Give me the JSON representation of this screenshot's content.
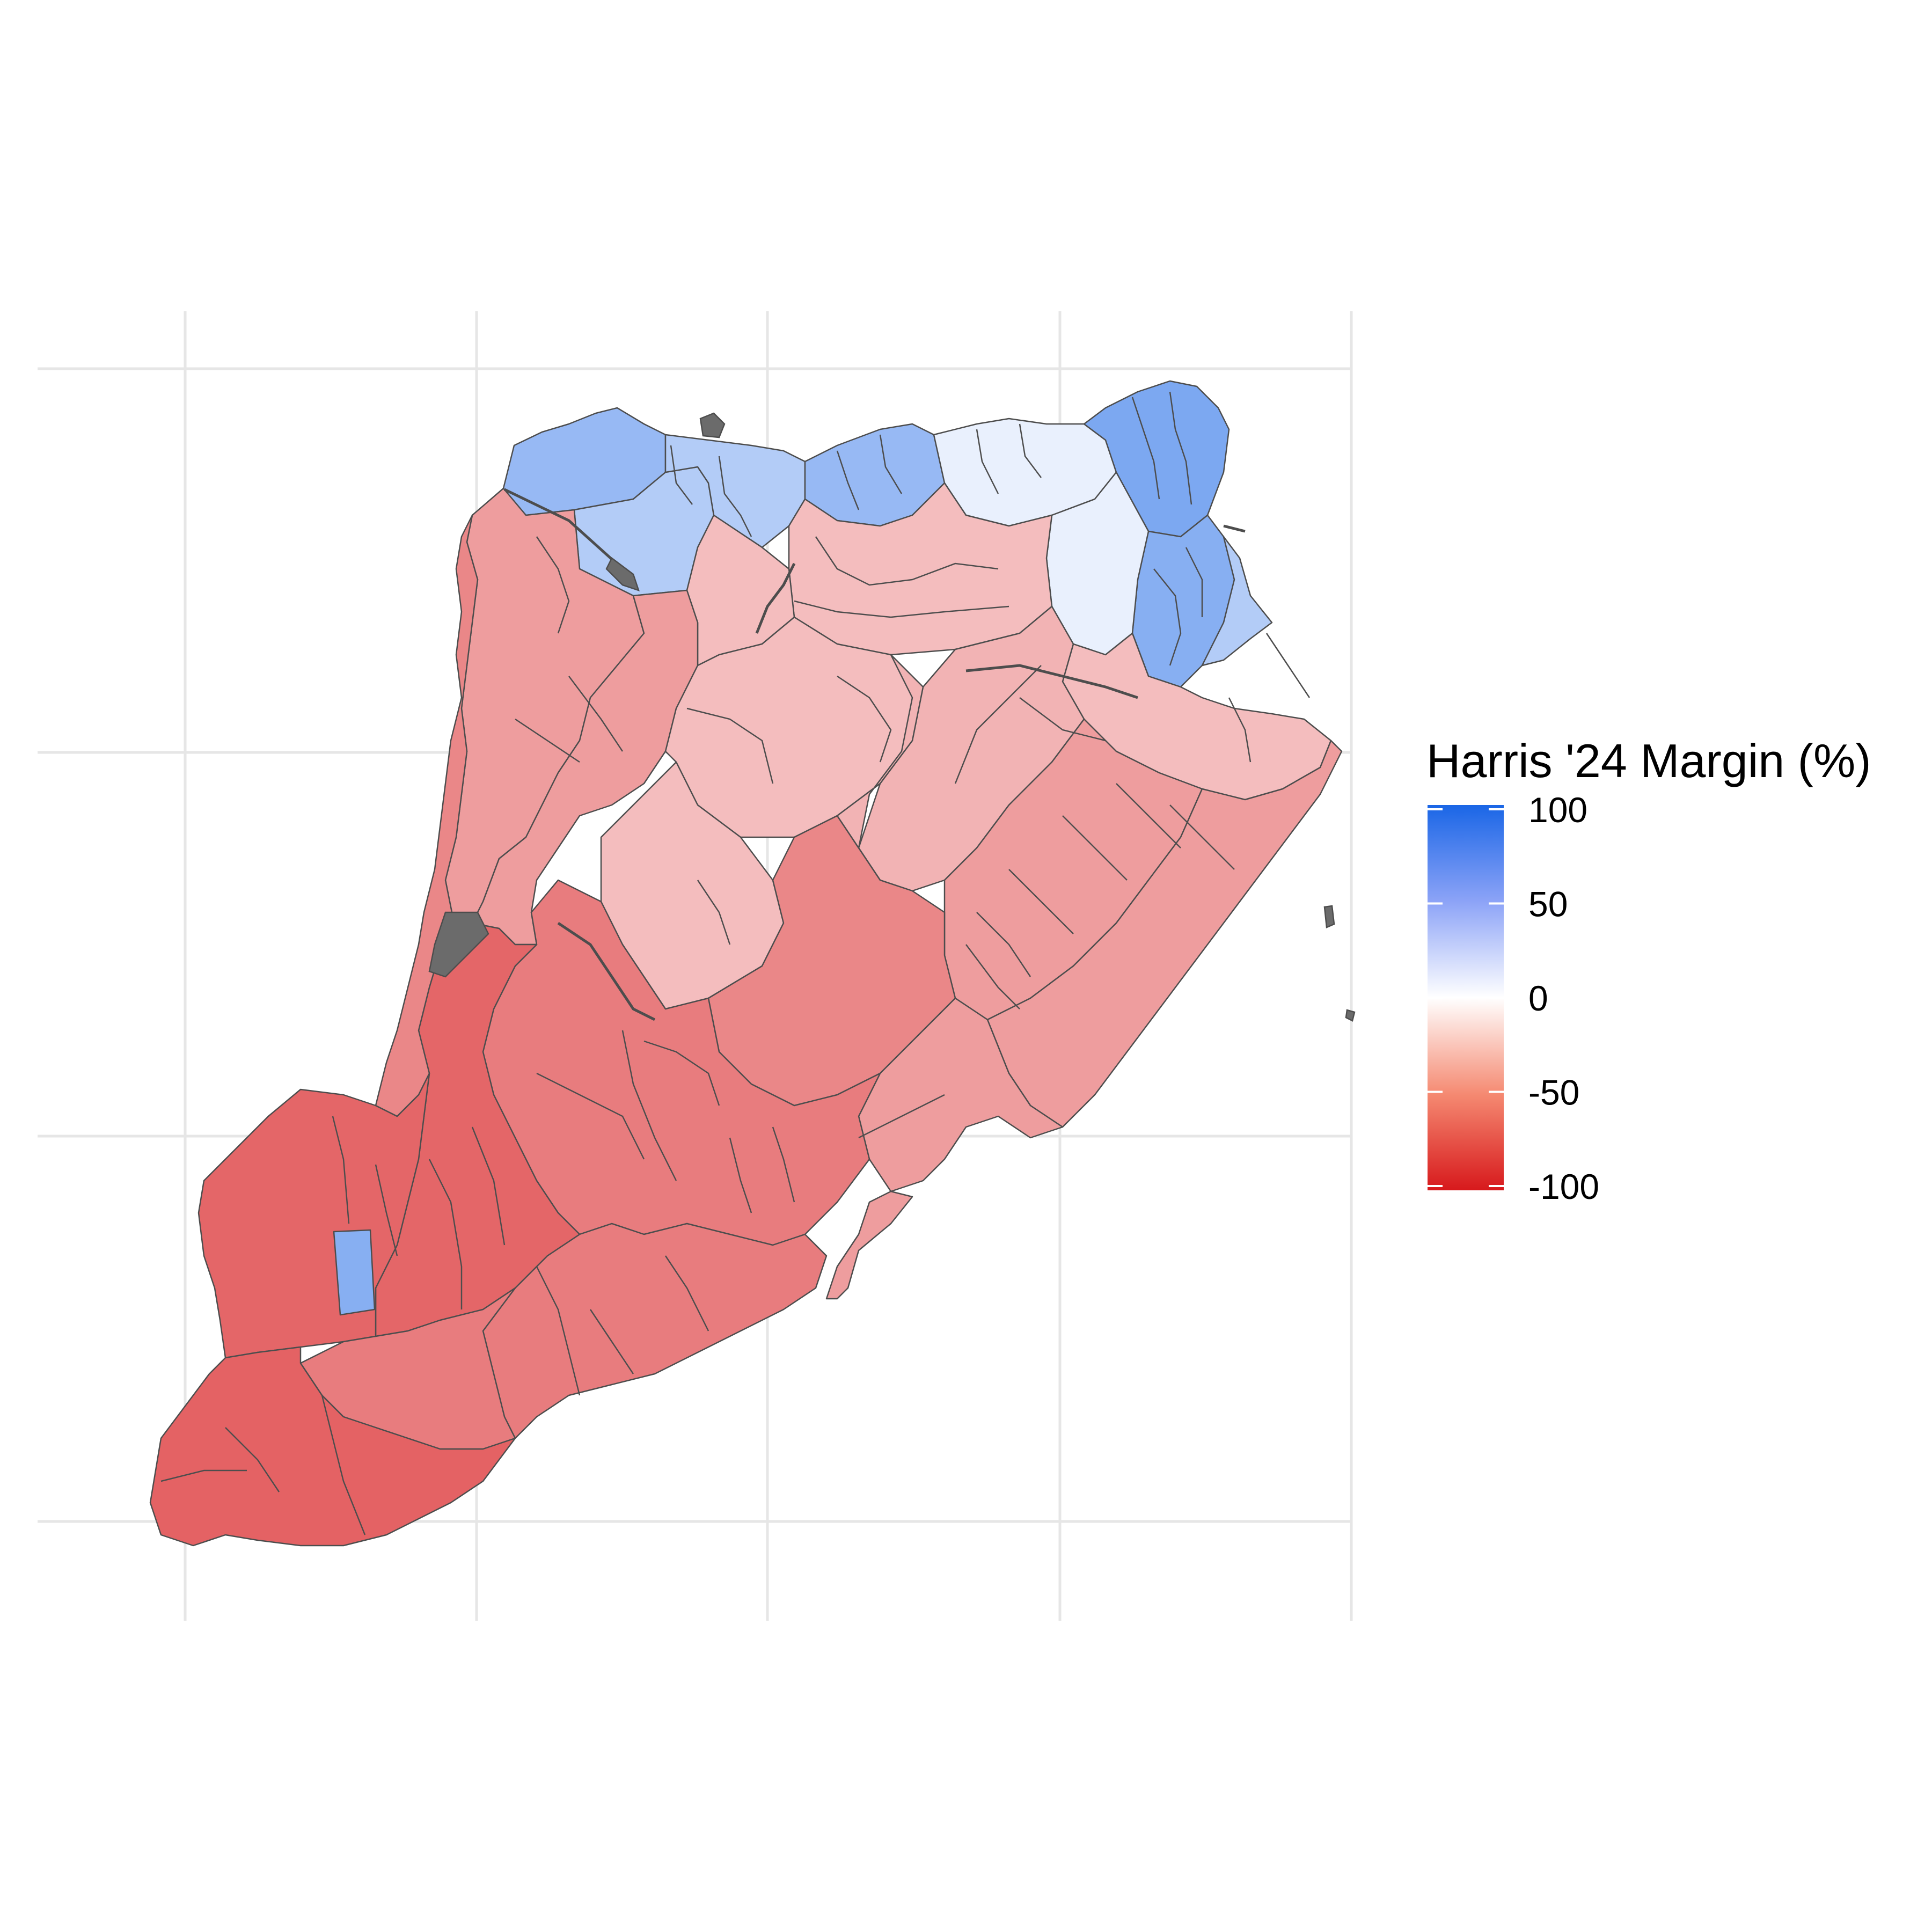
{
  "legend": {
    "title": "Harris '24 Margin (%)",
    "ticks": [
      {
        "value": 100,
        "label": "100"
      },
      {
        "value": 50,
        "label": "50"
      },
      {
        "value": 0,
        "label": "0"
      },
      {
        "value": -50,
        "label": "-50"
      },
      {
        "value": -100,
        "label": "-100"
      }
    ],
    "scale": {
      "min": -100,
      "max": 100,
      "low_color": "#d7191c",
      "mid_color": "#ffffff",
      "high_color": "#1a66e6"
    }
  },
  "colors": {
    "missing_data": "#6b6b6b",
    "boundary": "#4d4d4d",
    "grid": "#e6e6e6",
    "background": "#ffffff"
  },
  "map": {
    "region_margins": {
      "north_shore_west": 48,
      "north_shore_mid": 35,
      "north_shore_east": 55,
      "st_george": 60,
      "north_central": 10,
      "north_interior": -30,
      "mid_island_west": -45,
      "mid_island": -30,
      "mid_island_east": -35,
      "east_shore": -45,
      "south_central": -55,
      "south_shore": -60,
      "far_south": -70,
      "tottenville": -72,
      "blue_precinct_south": 55
    }
  }
}
